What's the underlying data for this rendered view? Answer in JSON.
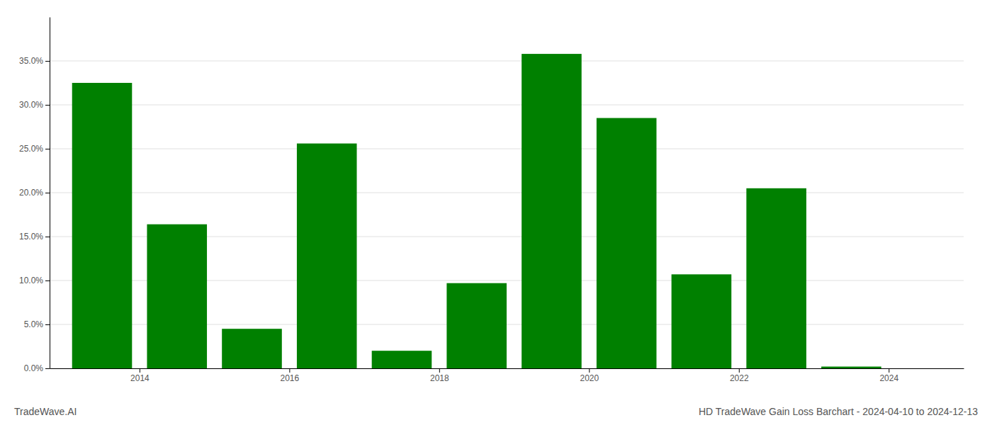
{
  "chart_data": {
    "type": "bar",
    "title": "HD TradeWave Gain Loss Barchart - 2024-04-10 to 2024-12-13",
    "annotations": [
      "TradeWave.AI"
    ],
    "x": [
      2013.5,
      2014.5,
      2015.5,
      2016.5,
      2017.5,
      2018.5,
      2019.5,
      2020.5,
      2021.5,
      2022.5,
      2023.5
    ],
    "values": [
      0.325,
      0.164,
      0.045,
      0.256,
      0.02,
      0.097,
      0.358,
      0.285,
      0.107,
      0.205,
      0.002
    ],
    "color": "#008000",
    "xlim": [
      2012.8,
      2025.0
    ],
    "xticks": [
      2014,
      2016,
      2018,
      2020,
      2022,
      2024
    ],
    "ylim": [
      0,
      0.4
    ],
    "yticks": [
      {
        "value": 0.0,
        "label": "0.0%"
      },
      {
        "value": 0.05,
        "label": "5.0%"
      },
      {
        "value": 0.1,
        "label": "10.0%"
      },
      {
        "value": 0.15,
        "label": "15.0%"
      },
      {
        "value": 0.2,
        "label": "20.0%"
      },
      {
        "value": 0.25,
        "label": "25.0%"
      },
      {
        "value": 0.3,
        "label": "30.0%"
      },
      {
        "value": 0.35,
        "label": "35.0%"
      }
    ],
    "grid": true
  }
}
